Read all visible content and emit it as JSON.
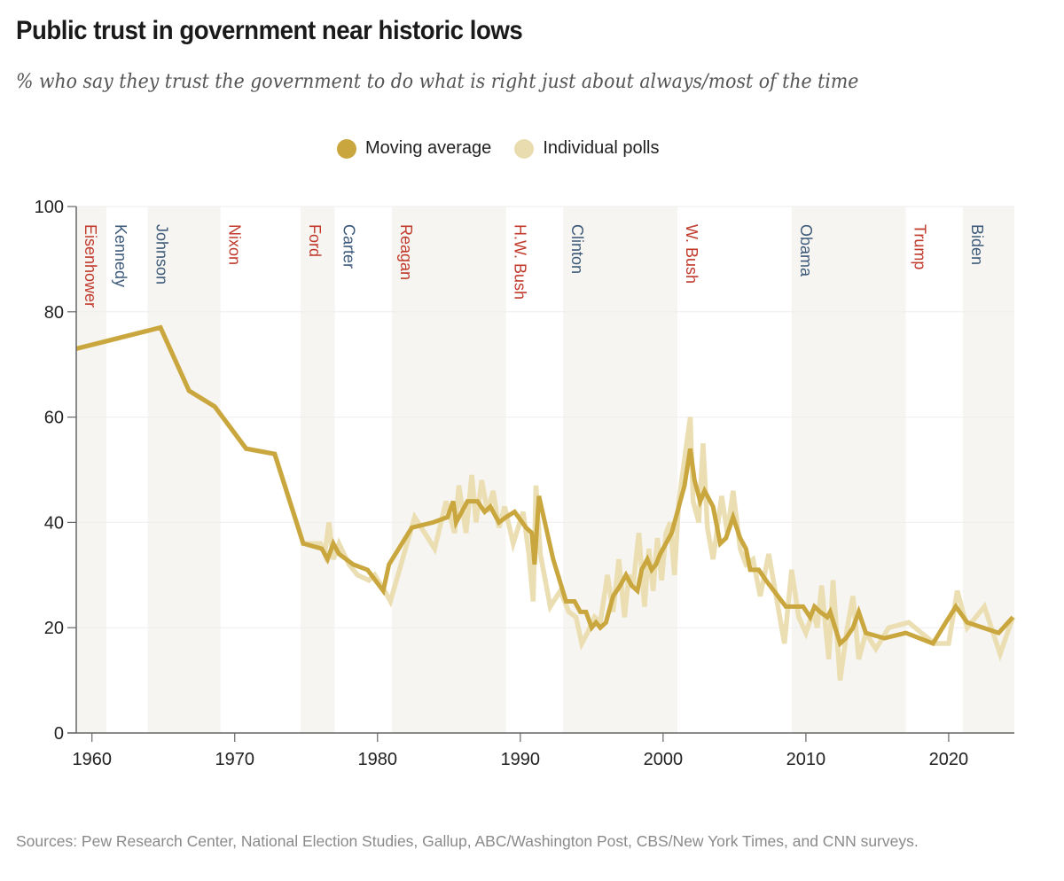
{
  "title": "Public trust in government near historic lows",
  "subtitle": "% who say they trust the government to do what is right just about always/most of the time",
  "legend": [
    {
      "label": "Moving average",
      "color": "#c9a73e"
    },
    {
      "label": "Individual polls",
      "color": "#e9dcae"
    }
  ],
  "footer": "Sources: Pew Research Center, National Election Studies, Gallup, ABC/Washington Post, CBS/New York Times, and CNN surveys.",
  "colors": {
    "republican": "#c0392b",
    "democrat": "#3d5a7a",
    "band": "#f7f5f1",
    "moving_average": "#c9a73e",
    "polls": "#e9dcae"
  },
  "chart_data": {
    "type": "line",
    "title": "Public trust in government near historic lows",
    "xlabel": "",
    "ylabel": "",
    "xlim": [
      1958.9,
      2024.6
    ],
    "ylim": [
      0,
      100
    ],
    "x_ticks": [
      1960,
      1970,
      1980,
      1990,
      2000,
      2010,
      2020
    ],
    "y_ticks": [
      0,
      20,
      40,
      60,
      80,
      100
    ],
    "grid": true,
    "legend_position": "top-center",
    "presidents": [
      {
        "name": "Eisenhower",
        "start": 1958.9,
        "end": 1961,
        "party": "R",
        "shaded": true
      },
      {
        "name": "Kennedy",
        "start": 1961,
        "end": 1963.9,
        "party": "D",
        "shaded": false
      },
      {
        "name": "Johnson",
        "start": 1963.9,
        "end": 1969,
        "party": "D",
        "shaded": true
      },
      {
        "name": "Nixon",
        "start": 1969,
        "end": 1974.6,
        "party": "R",
        "shaded": false
      },
      {
        "name": "Ford",
        "start": 1974.6,
        "end": 1977,
        "party": "R",
        "shaded": true
      },
      {
        "name": "Carter",
        "start": 1977,
        "end": 1981,
        "party": "D",
        "shaded": false
      },
      {
        "name": "Reagan",
        "start": 1981,
        "end": 1989,
        "party": "R",
        "shaded": true
      },
      {
        "name": "H.W. Bush",
        "start": 1989,
        "end": 1993,
        "party": "R",
        "shaded": false
      },
      {
        "name": "Clinton",
        "start": 1993,
        "end": 2001,
        "party": "D",
        "shaded": true
      },
      {
        "name": "W. Bush",
        "start": 2001,
        "end": 2009,
        "party": "R",
        "shaded": false
      },
      {
        "name": "Obama",
        "start": 2009,
        "end": 2017,
        "party": "D",
        "shaded": true
      },
      {
        "name": "Trump",
        "start": 2017,
        "end": 2021,
        "party": "R",
        "shaded": false
      },
      {
        "name": "Biden",
        "start": 2021,
        "end": 2024.6,
        "party": "D",
        "shaded": true
      }
    ],
    "series": [
      {
        "name": "Moving average",
        "x": [
          1958.9,
          1964.8,
          1966.8,
          1968.6,
          1970.8,
          1972.8,
          1974.8,
          1976.1,
          1976.5,
          1976.9,
          1977.3,
          1978.3,
          1979.3,
          1980.4,
          1980.8,
          1982.4,
          1983.9,
          1984.9,
          1985.3,
          1985.5,
          1986.3,
          1987.0,
          1987.5,
          1987.9,
          1988.5,
          1989.0,
          1989.6,
          1990.4,
          1990.8,
          1991.0,
          1991.3,
          1992.3,
          1993.2,
          1993.8,
          1994.2,
          1994.6,
          1995.0,
          1995.3,
          1995.6,
          1996.0,
          1996.5,
          1997.0,
          1997.4,
          1997.8,
          1998.2,
          1998.5,
          1998.9,
          1999.2,
          1999.5,
          1999.8,
          2000.2,
          2000.6,
          2001.0,
          2001.5,
          2001.9,
          2002.2,
          2002.6,
          2002.9,
          2003.5,
          2004.0,
          2004.4,
          2004.9,
          2005.4,
          2005.8,
          2006.1,
          2006.7,
          2007.2,
          2008.6,
          2009.0,
          2009.8,
          2010.3,
          2010.6,
          2011.0,
          2011.5,
          2011.7,
          2012.4,
          2012.8,
          2013.3,
          2013.7,
          2014.2,
          2015.5,
          2017.0,
          2018.9,
          2019.8,
          2020.5,
          2021.3,
          2023.5,
          2024.5
        ],
        "y": [
          73,
          77,
          65,
          62,
          54,
          53,
          36,
          35,
          33,
          36,
          34,
          32,
          31,
          27,
          32,
          39,
          40,
          41,
          44,
          40,
          44,
          44,
          42,
          43,
          40,
          41,
          42,
          39,
          38,
          32,
          45,
          33,
          25,
          25,
          23,
          23,
          20,
          21,
          20,
          21,
          26,
          28,
          30,
          28,
          27,
          31,
          33,
          31,
          32,
          34,
          36,
          38,
          42,
          47,
          54,
          48,
          44,
          46,
          43,
          36,
          37,
          41,
          37,
          35,
          31,
          31,
          29,
          24,
          24,
          24,
          22,
          24,
          23,
          22,
          23,
          17,
          18,
          20,
          23,
          19,
          18,
          19,
          17,
          21,
          24,
          21,
          19,
          22
        ]
      },
      {
        "name": "Individual polls",
        "x": [
          1958.9,
          1964.8,
          1966.8,
          1968.6,
          1970.8,
          1972.8,
          1974.8,
          1976.0,
          1976.3,
          1976.6,
          1976.9,
          1977.3,
          1978.0,
          1978.6,
          1979.4,
          1979.8,
          1980.5,
          1980.9,
          1982.6,
          1984.0,
          1984.8,
          1985.4,
          1985.7,
          1986.2,
          1986.6,
          1986.9,
          1987.3,
          1987.7,
          1988.1,
          1988.5,
          1988.9,
          1989.5,
          1990.2,
          1990.6,
          1990.9,
          1991.1,
          1991.4,
          1992.1,
          1992.8,
          1993.4,
          1993.9,
          1994.3,
          1994.7,
          1995.2,
          1995.6,
          1996.1,
          1996.5,
          1996.9,
          1997.3,
          1997.6,
          1997.9,
          1998.3,
          1998.7,
          1999.0,
          1999.3,
          1999.6,
          1999.9,
          2000.2,
          2000.5,
          2000.8,
          2001.1,
          2001.5,
          2001.9,
          2002.1,
          2002.5,
          2002.8,
          2003.1,
          2003.5,
          2004.1,
          2004.5,
          2004.9,
          2005.4,
          2005.8,
          2006.3,
          2006.8,
          2007.4,
          2008.5,
          2009.0,
          2009.5,
          2010.0,
          2010.5,
          2010.8,
          2011.1,
          2011.6,
          2011.9,
          2012.4,
          2012.9,
          2013.3,
          2013.7,
          2014.2,
          2014.9,
          2015.8,
          2017.2,
          2019.0,
          2020.0,
          2020.6,
          2021.3,
          2022.5,
          2023.6,
          2024.5
        ],
        "y": [
          73,
          77,
          65,
          62,
          54,
          53,
          36,
          36,
          34,
          40,
          33,
          36,
          32,
          30,
          29,
          30,
          27,
          25,
          41,
          35,
          44,
          38,
          47,
          38,
          49,
          40,
          48,
          42,
          46,
          39,
          43,
          36,
          42,
          34,
          25,
          47,
          34,
          24,
          27,
          23,
          22,
          17,
          19,
          22,
          21,
          30,
          23,
          33,
          22,
          30,
          28,
          38,
          24,
          35,
          27,
          37,
          29,
          38,
          40,
          30,
          44,
          52,
          60,
          44,
          40,
          55,
          39,
          33,
          45,
          38,
          46,
          35,
          32,
          33,
          26,
          34,
          17,
          31,
          22,
          19,
          23,
          20,
          28,
          14,
          29,
          10,
          20,
          26,
          14,
          19,
          16,
          20,
          21,
          17,
          17,
          27,
          20,
          24,
          15,
          22
        ]
      }
    ]
  }
}
